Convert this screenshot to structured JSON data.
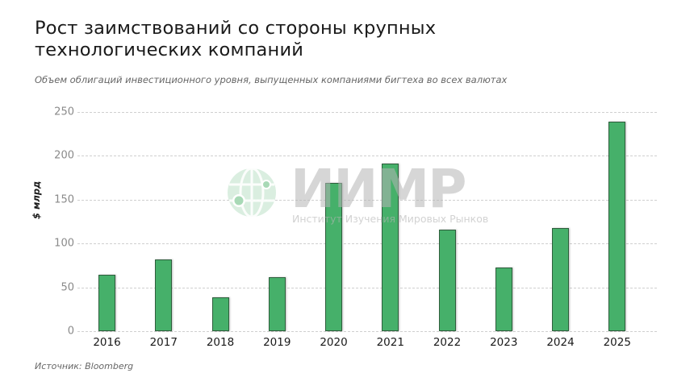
{
  "header": {
    "title": "Рост заимствований со стороны крупных технологических компаний",
    "subtitle": "Объем облигаций инвестиционного уровня, выпущенных компаниями бигтеха во всех валютах"
  },
  "footer": {
    "source": "Источник: Bloomberg"
  },
  "watermark": {
    "logo_text": "ИИМР",
    "subtitle": "Институт Изучения Мировых Рынков",
    "icon": "globe-icon"
  },
  "colors": {
    "bar_fill": "#46b06a",
    "bar_border": "#2e5e3c",
    "grid": "#cfcfcf",
    "tick_text": "#8a8a8a"
  },
  "chart_data": {
    "type": "bar",
    "title": "Рост заимствований со стороны крупных технологических компаний",
    "subtitle": "Объем облигаций инвестиционного уровня, выпущенных компаниями бигтеха во всех валютах",
    "xlabel": "",
    "ylabel": "$ млрд",
    "categories": [
      "2016",
      "2017",
      "2018",
      "2019",
      "2020",
      "2021",
      "2022",
      "2023",
      "2024",
      "2025"
    ],
    "values": [
      64,
      82,
      39,
      62,
      169,
      191,
      116,
      73,
      118,
      239
    ],
    "ylim": [
      0,
      250
    ],
    "yticks": [
      "0",
      "50",
      "100",
      "150",
      "200",
      "250"
    ],
    "grid": true,
    "legend": null,
    "source": "Источник: Bloomberg"
  }
}
